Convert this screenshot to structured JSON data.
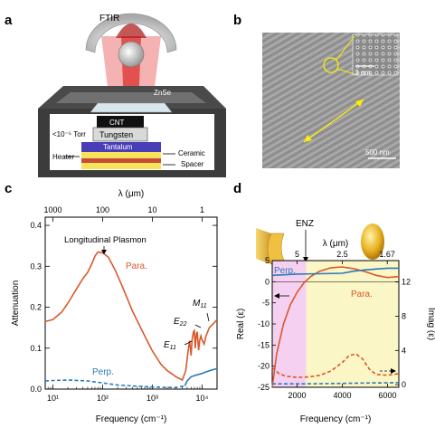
{
  "panels": {
    "a": {
      "letter": "a",
      "labels": {
        "ftir": "FTIR",
        "znse": "ZnSe",
        "cnt": "CNT",
        "tungsten": "Tungsten",
        "tantalum": "Tantalum",
        "pressure": "<10⁻⁵ Torr",
        "heater": "Heater",
        "ceramic": "Ceramic",
        "spacer": "Spacer"
      }
    },
    "b": {
      "letter": "b",
      "inset_scale": "3 nm",
      "scale": "500 nm"
    },
    "c": {
      "letter": "c",
      "top_axis_label": "λ (μm)",
      "bottom_axis_label": "Frequency (cm⁻¹)",
      "y_axis_label": "Attenuation",
      "top_ticks": [
        "1000",
        "100",
        "10",
        "1"
      ],
      "y_ticks": [
        "0.0",
        "0.1",
        "0.2",
        "0.3",
        "0.4"
      ],
      "annotations": {
        "plasmon": "Longitudinal Plasmon",
        "para": "Para.",
        "perp": "Perp.",
        "e11": "E",
        "e11_sub": "11",
        "e22": "E",
        "e22_sub": "22",
        "m11": "M",
        "m11_sub": "11"
      },
      "colors": {
        "para": "#d9582b",
        "perp": "#2a7ab9"
      }
    },
    "d": {
      "letter": "d",
      "enz": "ENZ",
      "top_axis_label": "λ (μm)",
      "top_ticks": [
        "5",
        "2.5",
        "1.67"
      ],
      "bottom_axis_label": "Frequency (cm⁻¹)",
      "y_left_label": "Real (ε)",
      "y_right_label": "Imag (ε)",
      "x_ticks": [
        "2000",
        "4000",
        "6000"
      ],
      "y_left_ticks": [
        "5",
        "0",
        "-5",
        "-10",
        "-15",
        "-20",
        "-25"
      ],
      "y_right_ticks": [
        "12",
        "8",
        "4",
        "0"
      ],
      "perp": "Perp.",
      "para": "Para.",
      "colors": {
        "para": "#d9582b",
        "perp": "#2a7ab9",
        "band_pink": "#f6d0f0",
        "band_yellow": "#fbf6c5"
      }
    }
  },
  "chart_data": [
    {
      "panel": "c",
      "type": "line",
      "xscale": "log",
      "xlabel": "Frequency (cm⁻¹)",
      "ylabel": "Attenuation",
      "xlim": [
        7,
        20000
      ],
      "ylim": [
        0,
        0.42
      ],
      "series": [
        {
          "name": "Para.",
          "style": "solid",
          "x": [
            7,
            10,
            15,
            20,
            30,
            40,
            50,
            60,
            70,
            80,
            100,
            130,
            180,
            250,
            400,
            700,
            1000,
            1500,
            2000,
            3000,
            4000,
            4700,
            5200,
            5600,
            6000,
            6300,
            6700,
            7000,
            7300,
            7700,
            8000,
            8500,
            9000,
            9500,
            10000,
            11000,
            12000,
            14000,
            17000,
            20000
          ],
          "y": [
            0.165,
            0.17,
            0.188,
            0.21,
            0.245,
            0.27,
            0.285,
            0.305,
            0.325,
            0.335,
            0.333,
            0.322,
            0.29,
            0.25,
            0.19,
            0.13,
            0.093,
            0.06,
            0.045,
            0.03,
            0.022,
            0.045,
            0.09,
            0.118,
            0.082,
            0.12,
            0.14,
            0.143,
            0.1,
            0.135,
            0.14,
            0.095,
            0.12,
            0.13,
            0.12,
            0.11,
            0.13,
            0.15,
            0.16,
            0.17
          ]
        },
        {
          "name": "Perp.",
          "style": "dashed",
          "x": [
            7,
            10,
            20,
            50,
            100,
            200,
            500,
            1000,
            2000,
            3000,
            4500
          ],
          "y": [
            0.02,
            0.021,
            0.022,
            0.02,
            0.015,
            0.01,
            0.007,
            0.005,
            0.004,
            0.004,
            0.008
          ]
        },
        {
          "name": "Perp. solid",
          "style": "solid",
          "x": [
            4500,
            5000,
            6000,
            7000,
            8000,
            10000,
            12000,
            15000,
            20000
          ],
          "y": [
            0.008,
            0.02,
            0.03,
            0.033,
            0.035,
            0.038,
            0.042,
            0.046,
            0.05
          ]
        }
      ]
    },
    {
      "panel": "d",
      "type": "line",
      "xlabel": "Frequency (cm⁻¹)",
      "ylabel": "Real (ε)",
      "y2label": "Imag (ε)",
      "xlim": [
        900,
        6500
      ],
      "ylim": [
        -25,
        5
      ],
      "y2lim": [
        -0.3,
        14.5
      ],
      "series": [
        {
          "name": "Para. real",
          "axis": "left",
          "style": "solid",
          "x": [
            900,
            1100,
            1400,
            1700,
            2000,
            2300,
            2600,
            3000,
            3500,
            4000,
            4500,
            5000,
            5500,
            6000,
            6500
          ],
          "y": [
            -25,
            -17,
            -10,
            -5.5,
            -2.5,
            -0.3,
            1.2,
            2.5,
            3.3,
            3.5,
            3.1,
            2.4,
            1.5,
            1.0,
            1.2
          ]
        },
        {
          "name": "Perp. real",
          "axis": "left",
          "style": "solid",
          "x": [
            900,
            2000,
            3000,
            4000,
            4500,
            5000,
            5500,
            6000,
            6500
          ],
          "y": [
            1.5,
            1.8,
            1.9,
            2.0,
            2.5,
            2.8,
            3.0,
            3.2,
            3.2
          ]
        },
        {
          "name": "Para. imag",
          "axis": "right",
          "style": "dashed",
          "x": [
            900,
            1200,
            1500,
            2000,
            2500,
            3000,
            3500,
            4000,
            4300,
            4600,
            4900,
            5200,
            5500,
            6000,
            6500
          ],
          "y": [
            2.0,
            1.3,
            1.0,
            0.85,
            0.9,
            1.1,
            1.6,
            2.6,
            3.4,
            3.6,
            3.0,
            1.8,
            1.2,
            1.1,
            1.3
          ]
        },
        {
          "name": "Perp. imag",
          "axis": "right",
          "style": "dashed",
          "x": [
            900,
            2000,
            3000,
            4000,
            5000,
            6000,
            6500
          ],
          "y": [
            0.1,
            0.1,
            0.12,
            0.15,
            0.2,
            0.22,
            0.25
          ]
        }
      ]
    }
  ]
}
